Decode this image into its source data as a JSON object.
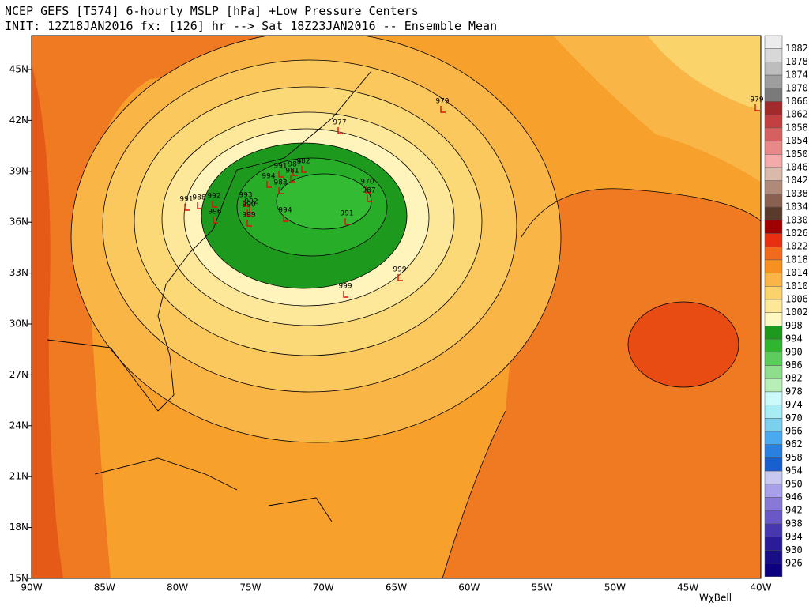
{
  "header": {
    "line1": "NCEP GEFS [T574] 6-hourly MSLP [hPa]  +Low Pressure Centers",
    "line2": "INIT: 12Z18JAN2016 fx: [126] hr --> Sat 18Z23JAN2016 -- Ensemble Mean"
  },
  "lat_labels": [
    "45N",
    "42N",
    "39N",
    "36N",
    "33N",
    "30N",
    "27N",
    "24N",
    "21N",
    "18N",
    "15N"
  ],
  "lon_labels": [
    "90W",
    "85W",
    "80W",
    "75W",
    "70W",
    "65W",
    "60W",
    "55W",
    "50W",
    "45W",
    "40W"
  ],
  "colorbar": [
    "1082",
    "1078",
    "1074",
    "1070",
    "1066",
    "1062",
    "1058",
    "1054",
    "1050",
    "1046",
    "1042",
    "1038",
    "1034",
    "1030",
    "1026",
    "1022",
    "1018",
    "1014",
    "1010",
    "1006",
    "1002",
    "998",
    "994",
    "990",
    "986",
    "982",
    "978",
    "974",
    "970",
    "966",
    "962",
    "958",
    "954",
    "950",
    "946",
    "942",
    "938",
    "934",
    "930",
    "926"
  ],
  "lows": [
    "979",
    "979",
    "977",
    "982",
    "987",
    "991",
    "981",
    "994",
    "983",
    "970",
    "987",
    "991",
    "988",
    "992",
    "993",
    "992",
    "990",
    "996",
    "999",
    "994",
    "991",
    "999",
    "999"
  ],
  "watermark": "WχBell"
}
